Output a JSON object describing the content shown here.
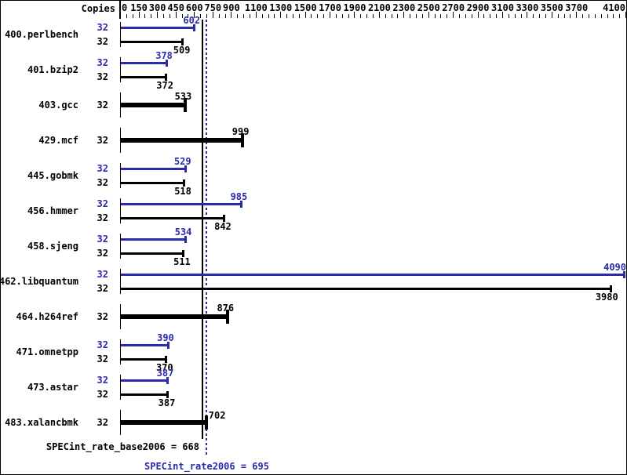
{
  "chart_data": {
    "type": "bar",
    "orientation": "horizontal",
    "title": "",
    "copies_header": "Copies",
    "colors": {
      "peak": "#2a2aad",
      "base": "#000000",
      "background": "#ffffff"
    },
    "axis": {
      "min": 0,
      "max": 4125,
      "minor_tick_step": 50,
      "labeled_ticks": [
        0,
        150,
        300,
        450,
        600,
        750,
        900,
        1100,
        1300,
        1500,
        1700,
        1900,
        2100,
        2300,
        2500,
        2700,
        2900,
        3100,
        3300,
        3500,
        3700,
        4100
      ]
    },
    "benchmarks": [
      {
        "name": "400.perlbench",
        "copies": 32,
        "peak": 602,
        "base": 509,
        "equal": false
      },
      {
        "name": "401.bzip2",
        "copies": 32,
        "peak": 378,
        "base": 372,
        "equal": false
      },
      {
        "name": "403.gcc",
        "copies": 32,
        "peak": 533,
        "base": 533,
        "equal": true
      },
      {
        "name": "429.mcf",
        "copies": 32,
        "peak": 999,
        "base": 999,
        "equal": true
      },
      {
        "name": "445.gobmk",
        "copies": 32,
        "peak": 529,
        "base": 518,
        "equal": false
      },
      {
        "name": "456.hmmer",
        "copies": 32,
        "peak": 985,
        "base": 842,
        "equal": false
      },
      {
        "name": "458.sjeng",
        "copies": 32,
        "peak": 534,
        "base": 511,
        "equal": false
      },
      {
        "name": "462.libquantum",
        "copies": 32,
        "peak": 4090,
        "base": 3980,
        "equal": false
      },
      {
        "name": "464.h264ref",
        "copies": 32,
        "peak": 876,
        "base": 876,
        "equal": true
      },
      {
        "name": "471.omnetpp",
        "copies": 32,
        "peak": 390,
        "base": 370,
        "equal": false
      },
      {
        "name": "473.astar",
        "copies": 32,
        "peak": 387,
        "base": 387,
        "equal": false
      },
      {
        "name": "483.xalancbmk",
        "copies": 32,
        "peak": 702,
        "base": 702,
        "equal": true,
        "value_label_side": "right"
      }
    ],
    "means": {
      "base_text": "SPECint_rate_base2006 = 668",
      "base_value": 668,
      "peak_text": "SPECint_rate2006 = 695",
      "peak_value": 695
    }
  }
}
